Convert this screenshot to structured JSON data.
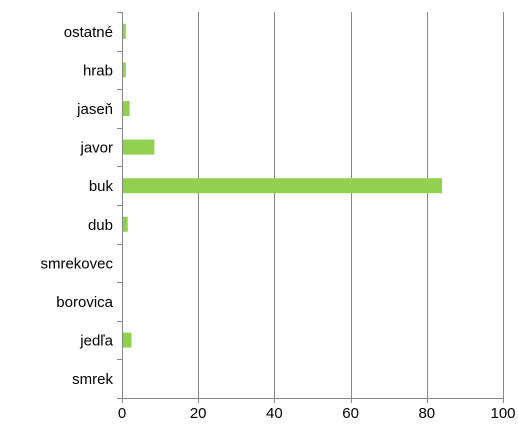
{
  "chart_data": {
    "type": "bar",
    "orientation": "horizontal",
    "categories": [
      "ostatné",
      "hrab",
      "jaseň",
      "javor",
      "buk",
      "dub",
      "smrekovec",
      "borovica",
      "jedľa",
      "smrek"
    ],
    "values": [
      1,
      1,
      2,
      8.5,
      84,
      1.5,
      0,
      0,
      2.5,
      0
    ],
    "xlim": [
      0,
      100
    ],
    "xticks": [
      "0",
      "20",
      "40",
      "60",
      "80",
      "100"
    ],
    "grid": true,
    "legend": "none",
    "bar_color": "#92D050",
    "grid_color": "#868686",
    "axis_color": "#868686"
  }
}
